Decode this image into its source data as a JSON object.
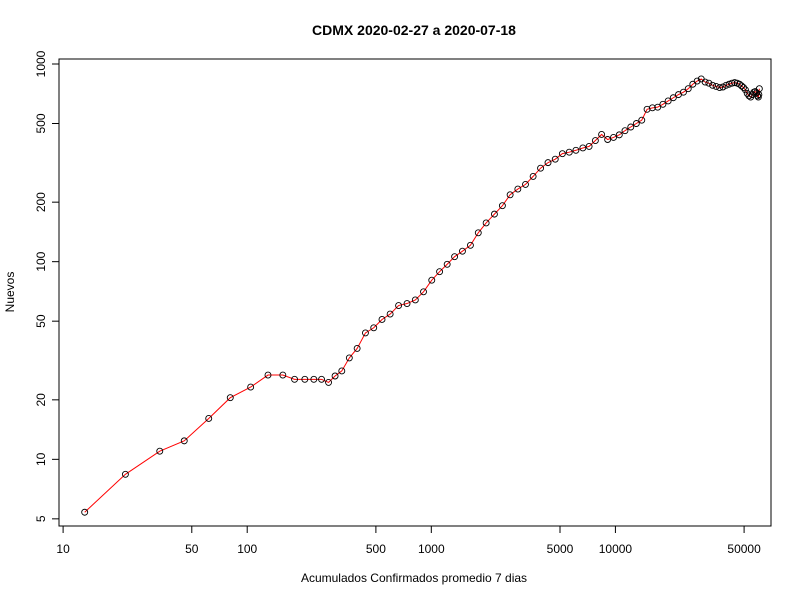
{
  "chart_data": {
    "type": "scatter",
    "title": "CDMX 2020-02-27 a 2020-07-18",
    "xlabel": "Acumulados Confirmados promedio  7  dias",
    "ylabel": "Nuevos",
    "x_scale": "log",
    "y_scale": "log",
    "xlim": [
      9.5,
      70000
    ],
    "ylim": [
      4.6,
      1060
    ],
    "x_ticks": [
      10,
      50,
      100,
      500,
      1000,
      5000,
      10000,
      50000
    ],
    "x_tick_labels": [
      "10",
      "50",
      "100",
      "500",
      "1000",
      "5000",
      "10000",
      "50000"
    ],
    "y_ticks": [
      5,
      10,
      20,
      50,
      100,
      200,
      500,
      1000
    ],
    "y_tick_labels": [
      "5",
      "10",
      "20",
      "50",
      "100",
      "200",
      "500",
      "1000"
    ],
    "grid": false,
    "colors": {
      "line": "#ff0000",
      "point_stroke": "#000000"
    },
    "series": [
      {
        "x": [
          13.1,
          21.8,
          33.5,
          45.5,
          61.8,
          80.9,
          104.4,
          129.7,
          156.1,
          180.8,
          205.6,
          230.1,
          253.4,
          276.6,
          300.1,
          326.4,
          358.7,
          395.5,
          438.8,
          486.7,
          539.8,
          597.5,
          664.2,
          738.1,
          818.7,
          907.2,
          1005.6,
          1109.0,
          1219.6,
          1338.1,
          1476.2,
          1630.9,
          1799.6,
          1985.2,
          2202.0,
          2433.4,
          2679.6,
          2951.4,
          3247.4,
          3573.0,
          3921.9,
          4304.7,
          4712.0,
          5152.0,
          5614.3,
          6102.3,
          6653.0,
          7197.0,
          7783.5,
          8414.3,
          9071.8,
          9762.0,
          10497.0,
          11271.0,
          12113.0,
          12988.0,
          13902.0,
          14858.0,
          15886.0,
          16969.0,
          18112.0,
          19338.0,
          20629.0,
          21998.0,
          23414.0,
          24864.0,
          26329.0,
          27800.0,
          29262.0,
          30722.0,
          32180.0,
          33705.0,
          35242.0,
          36802.0,
          38362.0,
          39922.0,
          41475.0,
          42994.0,
          44462.0,
          45870.0,
          47200.0,
          48468.0,
          49660.0,
          50830.0,
          51990.0,
          53150.0,
          54290.0,
          55395.0,
          56460.0,
          57440.0,
          58400.0,
          59200.0,
          59750.0,
          60150.0,
          60500.0
        ],
        "y": [
          5.4,
          8.4,
          11.0,
          12.4,
          16.1,
          20.5,
          23.2,
          26.7,
          26.7,
          25.4,
          25.4,
          25.4,
          25.4,
          24.5,
          26.4,
          28.0,
          32.6,
          36.4,
          43.6,
          46.3,
          51.0,
          54.3,
          60.0,
          61.4,
          64.0,
          70.4,
          80.6,
          89.0,
          97.0,
          106.0,
          113.0,
          121.0,
          140.0,
          157.0,
          174.0,
          192.0,
          218.0,
          233.0,
          246.0,
          270.0,
          297.0,
          317.0,
          330.0,
          352.0,
          358.0,
          366.0,
          376.0,
          383.0,
          410.0,
          440.0,
          415.0,
          425.0,
          438.0,
          460.0,
          480.0,
          500.0,
          520.0,
          590.0,
          600.0,
          605.0,
          625.0,
          650.0,
          675.0,
          700.0,
          720.0,
          750.0,
          790.0,
          820.0,
          840.0,
          810.0,
          800.0,
          780.0,
          770.0,
          760.0,
          765.0,
          780.0,
          790.0,
          800.0,
          805.0,
          800.0,
          790.0,
          775.0,
          760.0,
          740.0,
          710.0,
          690.0,
          680.0,
          700.0,
          720.0,
          725.0,
          715.0,
          690.0,
          680.0,
          700.0,
          750.0
        ]
      }
    ]
  }
}
